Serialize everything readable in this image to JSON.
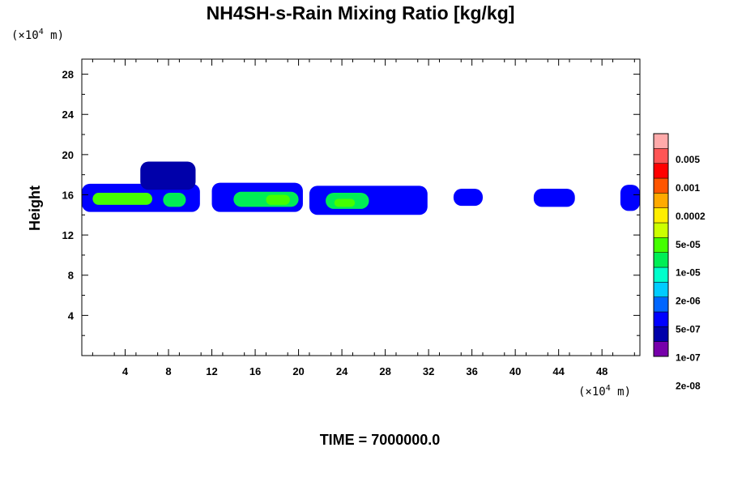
{
  "chart_data": {
    "type": "heatmap",
    "title": "NH4SH-s-Rain Mixing Ratio [kg/kg]",
    "y_unit": {
      "prefix": "(×10",
      "exp": "4",
      "suffix": " m)"
    },
    "x_unit": {
      "prefix": "(×10",
      "exp": "4",
      "suffix": " m)"
    },
    "ylabel": "Height",
    "xlabel": "",
    "xlim": [
      0,
      51.5
    ],
    "ylim": [
      0,
      29.5
    ],
    "x_ticks": [
      4,
      8,
      12,
      16,
      20,
      24,
      28,
      32,
      36,
      40,
      44,
      48
    ],
    "y_ticks": [
      4,
      8,
      12,
      16,
      20,
      24,
      28
    ],
    "colorbar": {
      "labels": [
        "0.005",
        "0.001",
        "0.0002",
        "5e-05",
        "1e-05",
        "2e-06",
        "5e-07",
        "1e-07",
        "2e-08"
      ],
      "colors_bottom_to_top": [
        "#7700aa",
        "#0000aa",
        "#0000ff",
        "#0066ff",
        "#00ccff",
        "#00ffcc",
        "#00ee55",
        "#44ff00",
        "#ccff00",
        "#ffee00",
        "#ffaa00",
        "#ff5500",
        "#ff0000",
        "#ff5555",
        "#ffaaaa"
      ]
    },
    "features": [
      {
        "level": 2,
        "x_range": [
          0.0,
          10.9
        ],
        "y_range": [
          14.3,
          17.1
        ]
      },
      {
        "level": 7,
        "x_range": [
          1.0,
          6.5
        ],
        "y_range": [
          15.0,
          16.2
        ]
      },
      {
        "level": 6,
        "x_range": [
          7.5,
          9.6
        ],
        "y_range": [
          14.8,
          16.2
        ]
      },
      {
        "level": 1,
        "x_range": [
          5.4,
          10.5
        ],
        "y_range": [
          16.5,
          19.3
        ]
      },
      {
        "level": 2,
        "x_range": [
          12.0,
          20.4
        ],
        "y_range": [
          14.3,
          17.2
        ]
      },
      {
        "level": 6,
        "x_range": [
          14.0,
          20.0
        ],
        "y_range": [
          14.8,
          16.3
        ]
      },
      {
        "level": 7,
        "x_range": [
          17.0,
          19.2
        ],
        "y_range": [
          15.0,
          16.0
        ]
      },
      {
        "level": 2,
        "x_range": [
          21.0,
          31.9
        ],
        "y_range": [
          14.0,
          16.9
        ]
      },
      {
        "level": 6,
        "x_range": [
          22.5,
          26.5
        ],
        "y_range": [
          14.6,
          16.2
        ]
      },
      {
        "level": 7,
        "x_range": [
          23.3,
          25.2
        ],
        "y_range": [
          14.8,
          15.6
        ]
      },
      {
        "level": 2,
        "x_range": [
          34.3,
          37.0
        ],
        "y_range": [
          14.9,
          16.6
        ]
      },
      {
        "level": 2,
        "x_range": [
          41.7,
          45.5
        ],
        "y_range": [
          14.8,
          16.6
        ]
      },
      {
        "level": 2,
        "x_range": [
          49.7,
          51.5
        ],
        "y_range": [
          14.4,
          17.0
        ]
      }
    ]
  },
  "footer": {
    "time_label": "TIME = 7000000.0"
  }
}
